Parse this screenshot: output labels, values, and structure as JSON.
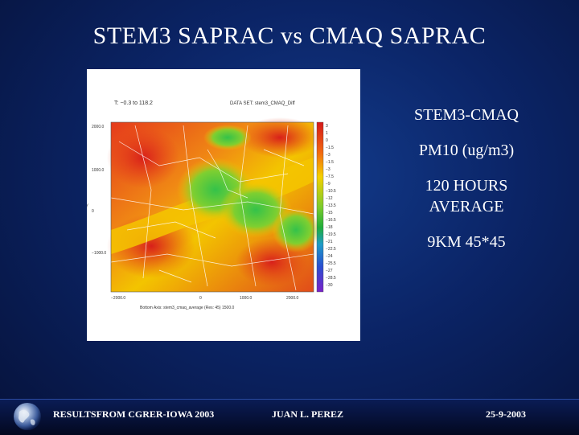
{
  "slide": {
    "title": "STEM3 SAPRAC vs CMAQ SAPRAC"
  },
  "plot": {
    "range_label": "T: −0.3 to 118.2",
    "header_label": "DATA SET: stem3_CMAQ_Diff",
    "y_axis_label": "Y",
    "x_tick_labels": [
      "−2000.0",
      "0",
      "1000.0",
      "2000.0"
    ],
    "y_tick_labels": [
      "2000.0",
      "1000.0",
      "0",
      "−1000.0"
    ],
    "x_axis_label": "Bottom Axis: stem3_cmaq_average (Res: 45) 1500.0",
    "colorbar_labels": [
      "3",
      "1",
      "0",
      "−1.5",
      "−3",
      "−1.5",
      "−3",
      "−7.5",
      "−9",
      "−10.5",
      "−12",
      "−13.5",
      "−15",
      "−16.5",
      "−18",
      "−19.5",
      "−21",
      "−22.5",
      "−24",
      "−25.5",
      "−27",
      "−28.5",
      "−30"
    ],
    "colors": {
      "high": "#e2231a",
      "mid": "#f7b900",
      "low": "#2fb53a"
    }
  },
  "sidebar": {
    "line1": "STEM3-CMAQ",
    "line2": "PM10 (ug/m3)",
    "line3a": "120 HOURS",
    "line3b": "AVERAGE",
    "line4": "9KM 45*45"
  },
  "footer": {
    "left_text": "RESULTSFROM CGRER-IOWA 2003",
    "center_text": "JUAN L. PEREZ",
    "right_text": "25-9-2003",
    "logo_icon": "globe-icon"
  }
}
